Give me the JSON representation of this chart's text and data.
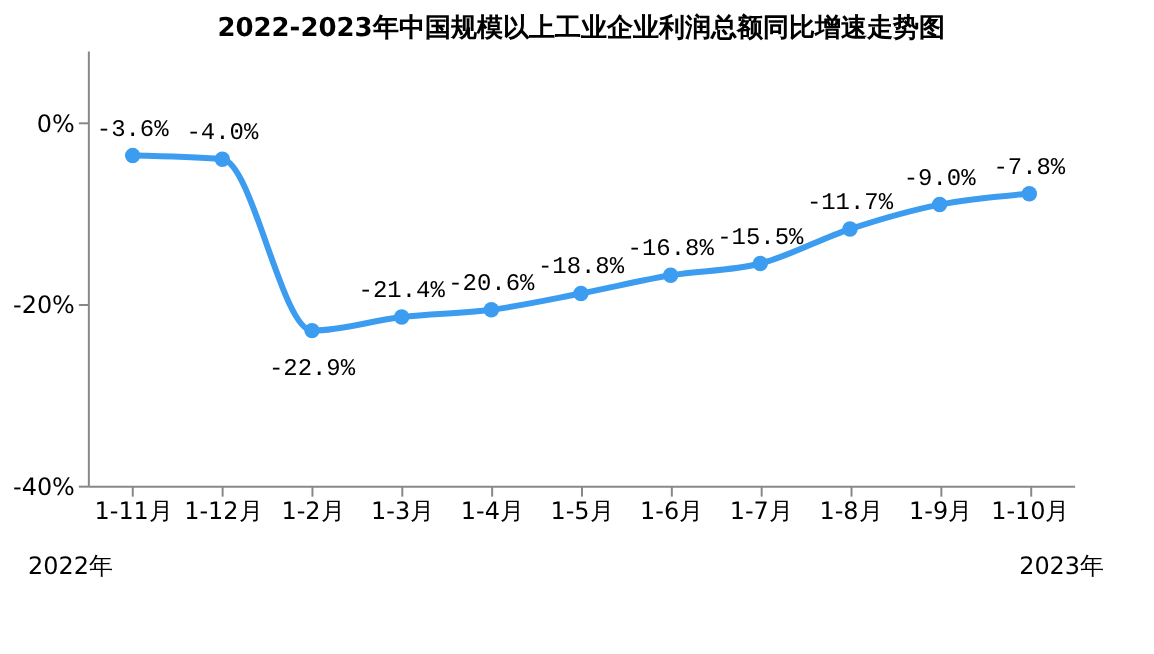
{
  "chart_data": {
    "type": "line",
    "title": "2022-2023年中国规模以上工业企业利润总额同比增速走势图",
    "categories": [
      "1-11月",
      "1-12月",
      "1-2月",
      "1-3月",
      "1-4月",
      "1-5月",
      "1-6月",
      "1-7月",
      "1-8月",
      "1-9月",
      "1-10月"
    ],
    "series": [
      {
        "color": "#3c9cf0",
        "values": [
          -3.6,
          -4.0,
          -22.9,
          -21.4,
          -20.6,
          -18.8,
          -16.8,
          -15.5,
          -11.7,
          -9.0,
          -7.8
        ],
        "value_labels": [
          "-3.6%",
          "-4.0%",
          "-22.9%",
          "-21.4%",
          "-20.6%",
          "-18.8%",
          "-16.8%",
          "-15.5%",
          "-11.7%",
          "-9.0%",
          "-7.8%"
        ]
      }
    ],
    "ylim": [
      -40,
      8
    ],
    "yticks": [
      {
        "value": -40,
        "label": "-40%"
      },
      {
        "value": -20,
        "label": "-20%"
      },
      {
        "value": 0,
        "label": "0%"
      }
    ],
    "annotations": [
      "2022年",
      "2023年"
    ],
    "grid": false,
    "marker": "circle",
    "line_style": "solid"
  }
}
